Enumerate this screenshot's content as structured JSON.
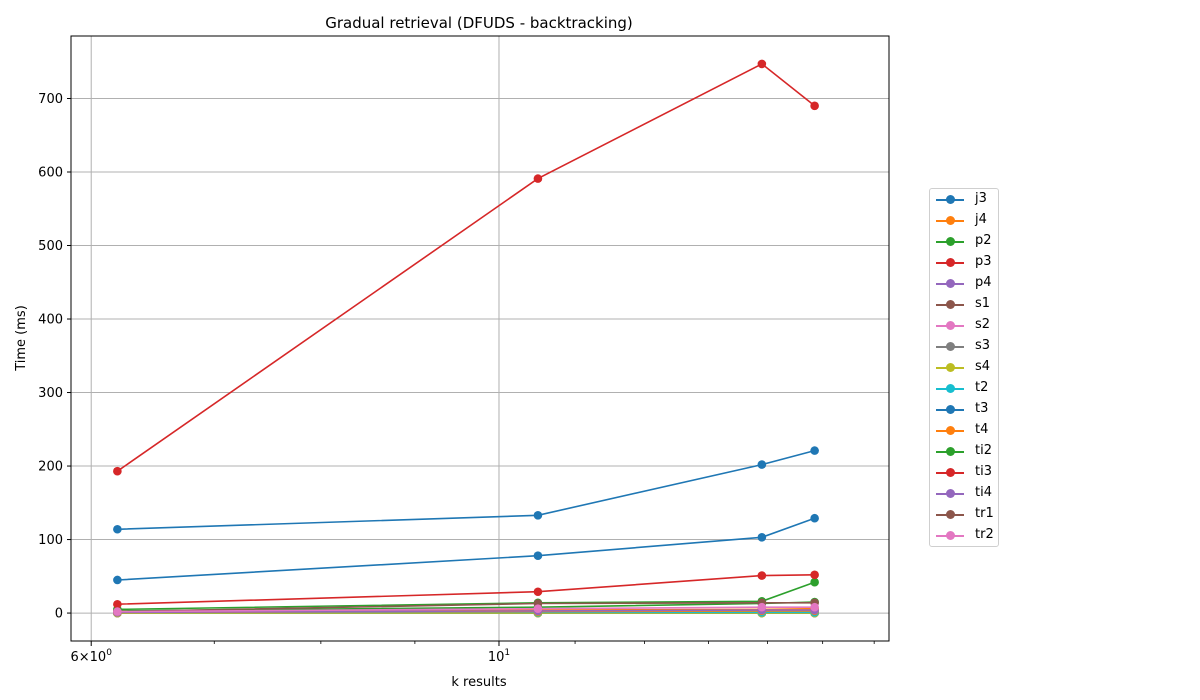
{
  "chart_data": {
    "type": "line",
    "title": "Gradual retrieval (DFUDS - backtracking)",
    "xlabel": "k results",
    "ylabel": "Time (ms)",
    "xscale": "log",
    "xlim": [
      5.85,
      16.3
    ],
    "ylim": [
      -38,
      785
    ],
    "x_ticks": [
      {
        "value": 6,
        "base": "6",
        "mant": "×10",
        "exp": "0"
      },
      {
        "value": 10,
        "base": "",
        "mant": "10",
        "exp": "1"
      }
    ],
    "y_ticks": [
      0,
      100,
      200,
      300,
      400,
      500,
      600,
      700
    ],
    "grid": true,
    "legend_position": "outside-right",
    "x": [
      6.2,
      10.5,
      13.9,
      14.85
    ],
    "series": [
      {
        "name": "j3",
        "color": "#1f77b4",
        "values": [
          45,
          78,
          103,
          129
        ]
      },
      {
        "name": "j4",
        "color": "#ff7f0e",
        "values": [
          3,
          4,
          5,
          6
        ]
      },
      {
        "name": "p2",
        "color": "#2ca02c",
        "values": [
          5,
          14,
          16,
          42
        ]
      },
      {
        "name": "p3",
        "color": "#d62728",
        "values": [
          193,
          591,
          747,
          690
        ]
      },
      {
        "name": "p4",
        "color": "#9467bd",
        "values": [
          0,
          1,
          1,
          1
        ]
      },
      {
        "name": "s1",
        "color": "#8c564b",
        "values": [
          0,
          0,
          0,
          0
        ]
      },
      {
        "name": "s2",
        "color": "#e377c2",
        "values": [
          1,
          1,
          1,
          1
        ]
      },
      {
        "name": "s3",
        "color": "#7f7f7f",
        "values": [
          0,
          0,
          0,
          0
        ]
      },
      {
        "name": "s4",
        "color": "#bcbd22",
        "values": [
          0,
          0,
          0,
          0
        ]
      },
      {
        "name": "t2",
        "color": "#17becf",
        "values": [
          1,
          1,
          1,
          1
        ]
      },
      {
        "name": "t3",
        "color": "#1f77b4",
        "values": [
          114,
          133,
          202,
          221
        ]
      },
      {
        "name": "t4",
        "color": "#ff7f0e",
        "values": [
          1,
          2,
          3,
          3
        ]
      },
      {
        "name": "ti2",
        "color": "#2ca02c",
        "values": [
          3,
          8,
          13,
          15
        ]
      },
      {
        "name": "ti3",
        "color": "#d62728",
        "values": [
          12,
          29,
          51,
          52
        ]
      },
      {
        "name": "ti4",
        "color": "#9467bd",
        "values": [
          1,
          3,
          4,
          4
        ]
      },
      {
        "name": "tr1",
        "color": "#8c564b",
        "values": [
          2,
          13,
          14,
          14
        ]
      },
      {
        "name": "tr2",
        "color": "#e377c2",
        "values": [
          2,
          6,
          8,
          8
        ]
      }
    ]
  }
}
